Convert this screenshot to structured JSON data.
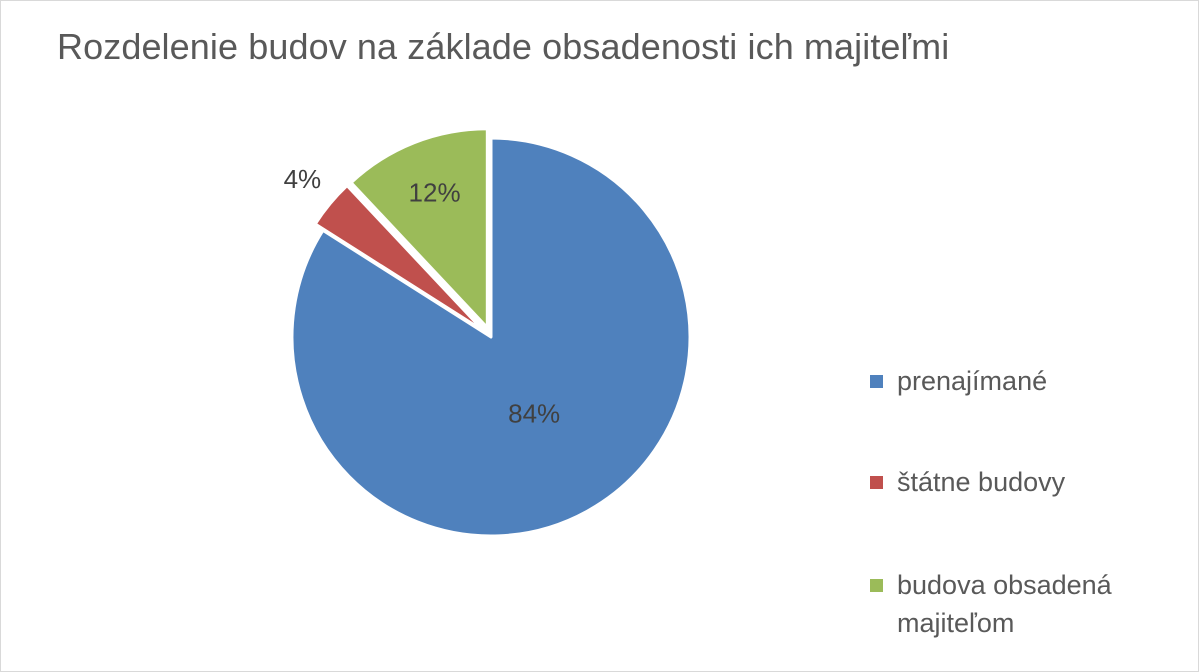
{
  "chart_data": {
    "type": "pie",
    "title": "Rozdelenie budov na základe obsadenosti ich majiteľmi",
    "slices": [
      {
        "label": "prenajímané",
        "value": 84,
        "display": "84%",
        "color": "#4f81bd"
      },
      {
        "label": "štátne budovy",
        "value": 4,
        "display": "4%",
        "color": "#c0504d"
      },
      {
        "label": "budova obsadená majiteľom",
        "value": 12,
        "display": "12%",
        "color": "#9bbb59"
      }
    ],
    "legend_position": "right",
    "exploded_slices": [
      "štátne budovy",
      "budova obsadená majiteľom"
    ]
  }
}
